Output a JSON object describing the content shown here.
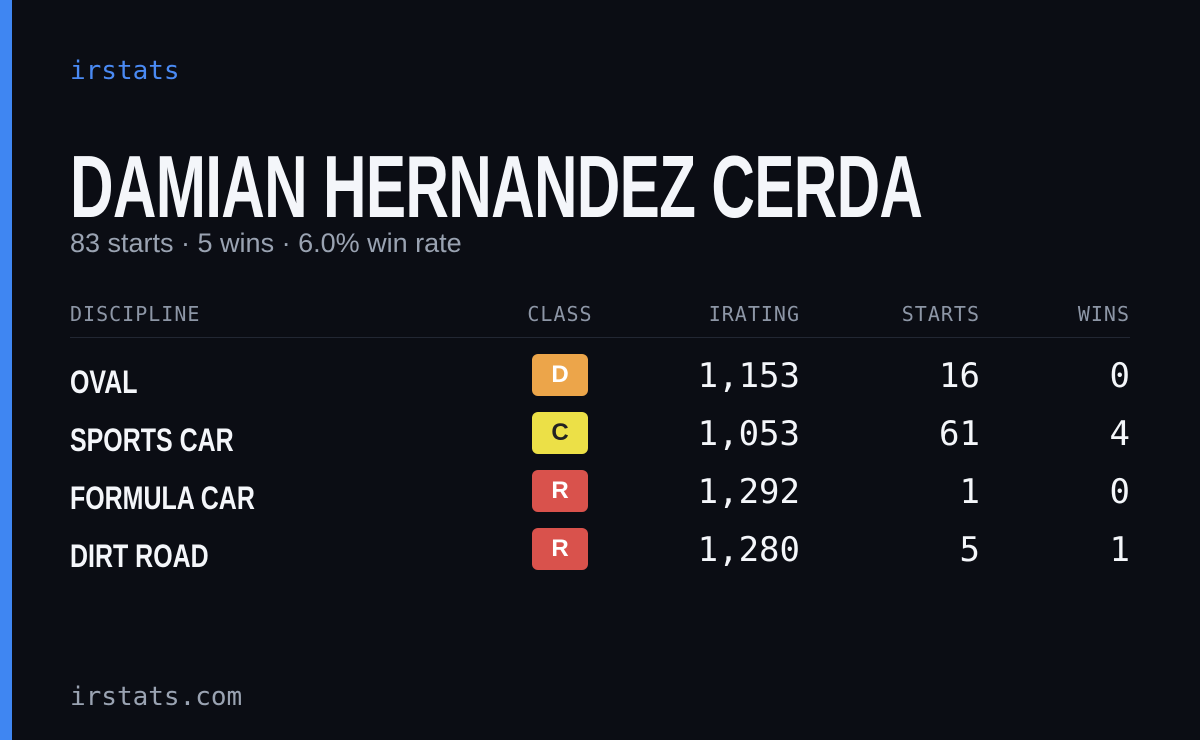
{
  "brand": "irstats",
  "name": "DAMIAN HERNANDEZ CERDA",
  "summary": "83 starts · 5 wins · 6.0% win rate",
  "table": {
    "headers": [
      "DISCIPLINE",
      "CLASS",
      "IRATING",
      "STARTS",
      "WINS"
    ],
    "rows": [
      [
        "OVAL",
        "D",
        "1,153",
        "16",
        "0"
      ],
      [
        "SPORTS CAR",
        "C",
        "1,053",
        "61",
        "4"
      ],
      [
        "FORMULA CAR",
        "R",
        "1,292",
        "1",
        "0"
      ],
      [
        "DIRT ROAD",
        "R",
        "1,280",
        "5",
        "1"
      ]
    ],
    "class_colors": {
      "D": "#eca54a",
      "C": "#ece047",
      "R": "#d9524c"
    }
  },
  "footer": "irstats.com"
}
